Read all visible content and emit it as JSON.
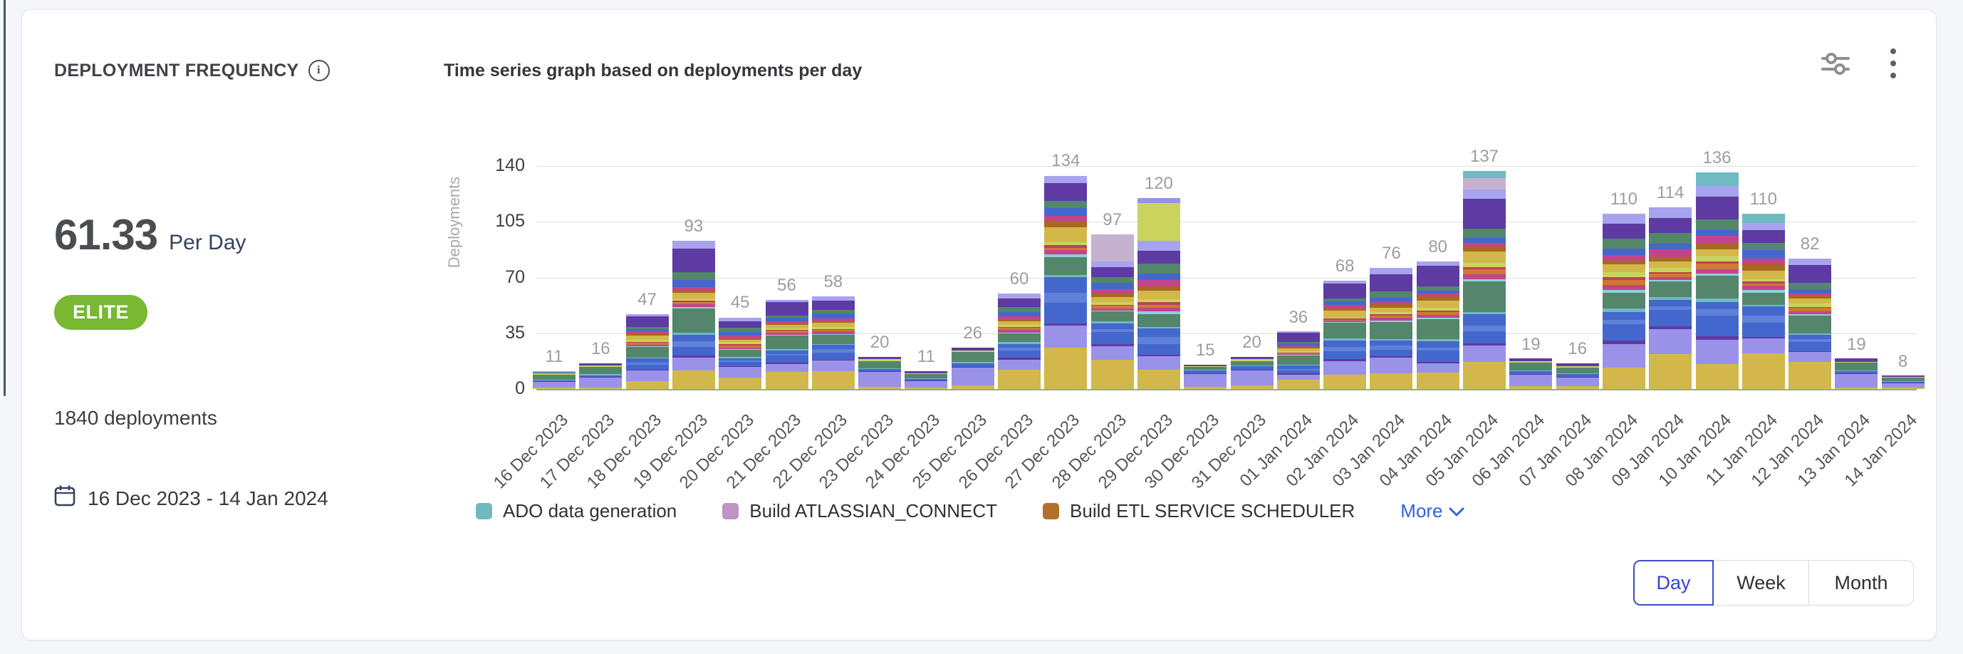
{
  "card": {
    "title": "DEPLOYMENT FREQUENCY",
    "chart_title": "Time series graph based on deployments per day",
    "metric_value": "61.33",
    "metric_unit": "Per Day",
    "badge_label": "ELITE",
    "badge_color": "#79b832",
    "total_deployments": "1840 deployments",
    "date_range": "16 Dec 2023 - 14 Jan 2024"
  },
  "chart_data": {
    "type": "bar",
    "stacked": true,
    "title": "Time series graph based on deployments per day",
    "xlabel": "",
    "ylabel": "Deployments",
    "yticks": [
      0,
      35,
      70,
      105,
      140
    ],
    "ylim": [
      0,
      140
    ],
    "grid": true,
    "categories": [
      "16 Dec 2023",
      "17 Dec 2023",
      "18 Dec 2023",
      "19 Dec 2023",
      "20 Dec 2023",
      "21 Dec 2023",
      "22 Dec 2023",
      "23 Dec 2023",
      "24 Dec 2023",
      "25 Dec 2023",
      "26 Dec 2023",
      "27 Dec 2023",
      "28 Dec 2023",
      "29 Dec 2023",
      "30 Dec 2023",
      "31 Dec 2023",
      "01 Jan 2024",
      "02 Jan 2024",
      "03 Jan 2024",
      "04 Jan 2024",
      "05 Jan 2024",
      "06 Jan 2024",
      "07 Jan 2024",
      "08 Jan 2024",
      "09 Jan 2024",
      "10 Jan 2024",
      "11 Jan 2024",
      "12 Jan 2024",
      "13 Jan 2024",
      "14 Jan 2024"
    ],
    "values": [
      11,
      16,
      47,
      93,
      45,
      56,
      58,
      20,
      11,
      26,
      60,
      134,
      97,
      120,
      15,
      20,
      36,
      68,
      76,
      80,
      137,
      19,
      16,
      110,
      114,
      136,
      110,
      82,
      19,
      8
    ],
    "legend_position": "bottom",
    "legend_items": [
      {
        "label": "ADO data generation",
        "color": "#72b8bf"
      },
      {
        "label": "Build ATLASSIAN_CONNECT",
        "color": "#bf95c3"
      },
      {
        "label": "Build ETL SERVICE SCHEDULER",
        "color": "#b2702a"
      }
    ],
    "more_label": "More",
    "palette": {
      "gold": "#d2b84a",
      "peri": "#9a92e8",
      "blue": "#4467ce",
      "lblu": "#5f81d8",
      "green": "#53866a",
      "dpur": "#5d3ba2",
      "teal": "#6fbac3",
      "mag": "#c2458c",
      "crim": "#ba4450",
      "ora": "#cd7a33",
      "brwn": "#aa671f",
      "ygrn": "#c9d45f",
      "mauv": "#c5b2cf",
      "lila": "#a8a3ee",
      "sky": "#8fd0dd"
    }
  },
  "controls": {
    "options": [
      {
        "label": "Day",
        "selected": true
      },
      {
        "label": "Week",
        "selected": false
      },
      {
        "label": "Month",
        "selected": false
      }
    ]
  }
}
